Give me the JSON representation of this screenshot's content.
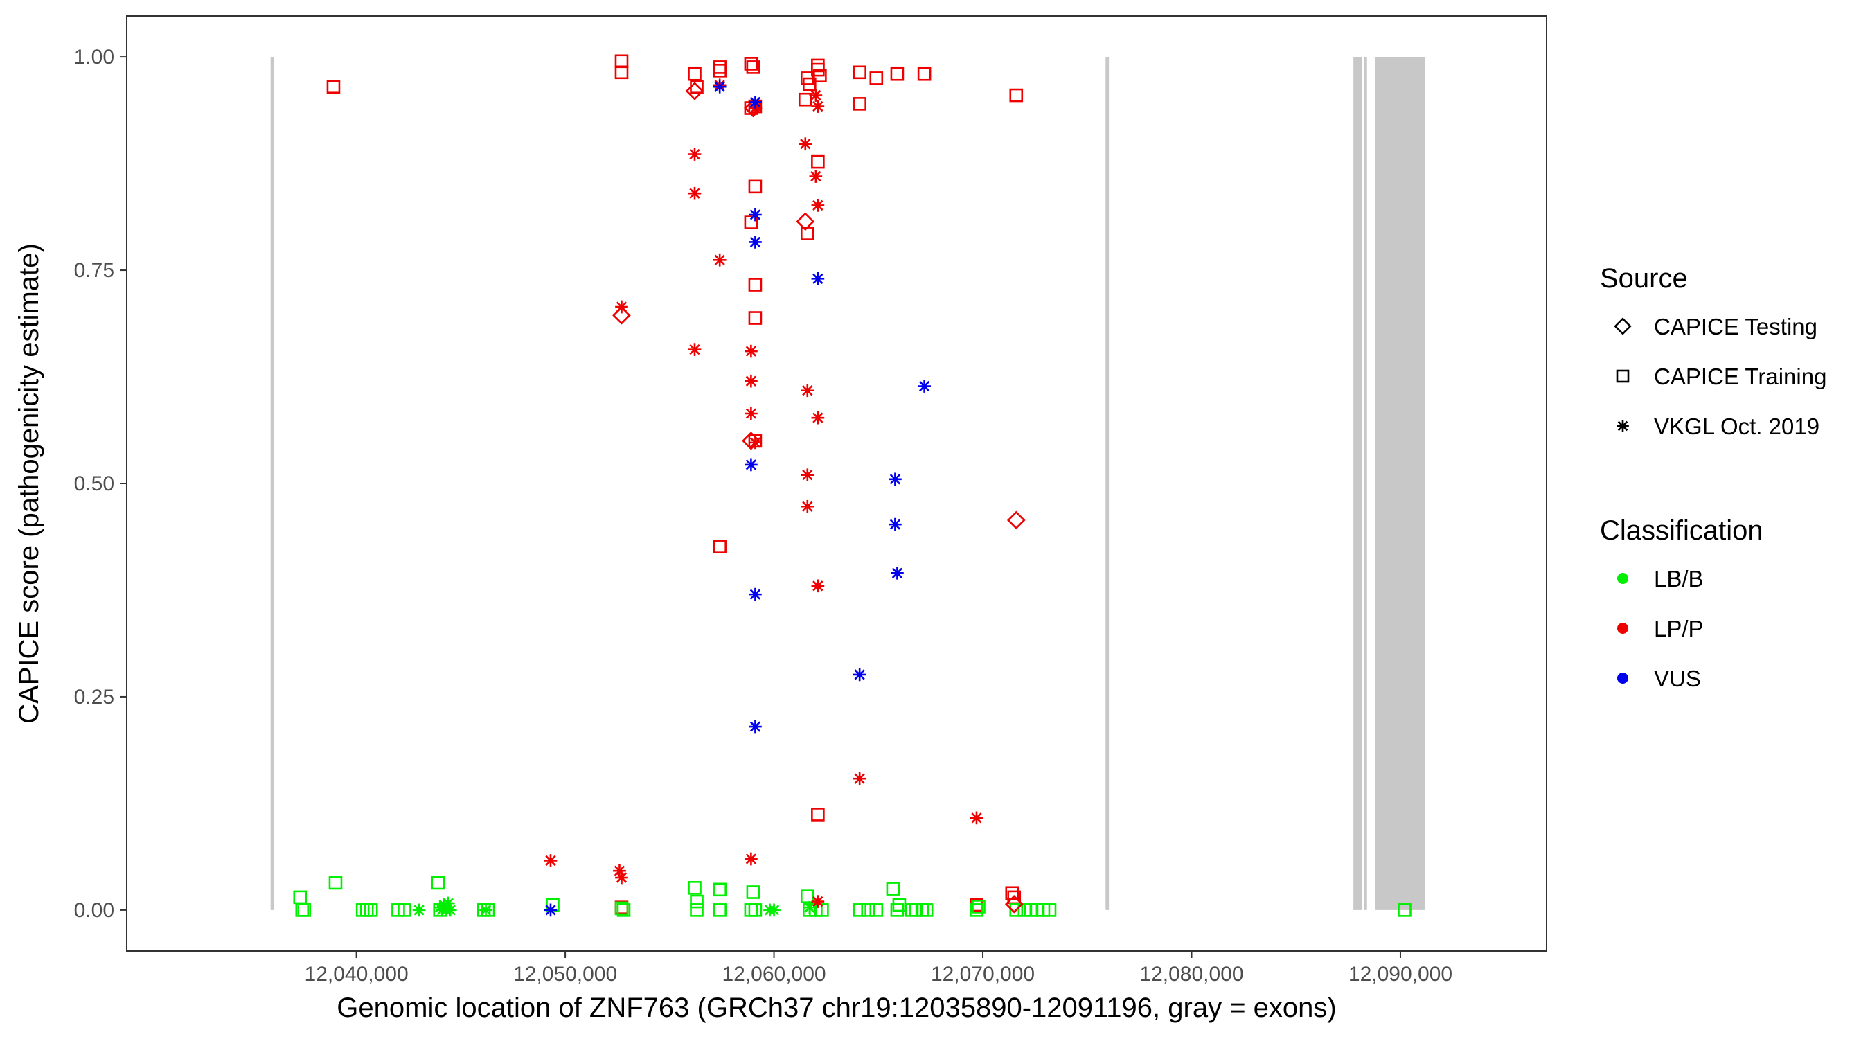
{
  "chart_data": {
    "type": "scatter",
    "xlabel": "Genomic location of ZNF763 (GRCh37 chr19:12035890-12091196, gray = exons)",
    "ylabel": "CAPICE score (pathogenicity estimate)",
    "xlim": [
      12029000,
      12097000
    ],
    "ylim": [
      -0.048,
      1.048
    ],
    "x_ticks": [
      12040000,
      12050000,
      12060000,
      12070000,
      12080000,
      12090000
    ],
    "x_tick_labels": [
      "12,040,000",
      "12,050,000",
      "12,060,000",
      "12,070,000",
      "12,080,000",
      "12,090,000"
    ],
    "y_ticks": [
      0.0,
      0.25,
      0.5,
      0.75,
      1.0
    ],
    "y_tick_labels": [
      "0.00",
      "0.25",
      "0.50",
      "0.75",
      "1.00"
    ],
    "grid": false,
    "exons": [
      {
        "start": 12035890,
        "end": 12036050
      },
      {
        "start": 12075880,
        "end": 12076040
      },
      {
        "start": 12087750,
        "end": 12088150
      },
      {
        "start": 12088250,
        "end": 12088400
      },
      {
        "start": 12088790,
        "end": 12091196
      }
    ],
    "legend": {
      "position": "right",
      "source_title": "Source",
      "source_entries": [
        {
          "label": "CAPICE Testing",
          "shape": "diamond"
        },
        {
          "label": "CAPICE Training",
          "shape": "square"
        },
        {
          "label": "VKGL Oct. 2019",
          "shape": "asterisk"
        }
      ],
      "class_title": "Classification",
      "class_entries": [
        {
          "label": "LB/B",
          "color": "#00ee00"
        },
        {
          "label": "LP/P",
          "color": "#ee0000"
        },
        {
          "label": "VUS",
          "color": "#0000ee"
        }
      ]
    },
    "colors": {
      "LB/B": "#00ee00",
      "LP/P": "#ee0000",
      "VUS": "#0000ee",
      "exon": "#c8c8c8"
    },
    "series": [
      {
        "name": "CAPICE Training",
        "shape": "square",
        "points": [
          [
            12038900,
            0.965,
            "LP/P"
          ],
          [
            12052700,
            0.995,
            "LP/P"
          ],
          [
            12052700,
            0.982,
            "LP/P"
          ],
          [
            12056200,
            0.98,
            "LP/P"
          ],
          [
            12056300,
            0.965,
            "LP/P"
          ],
          [
            12057400,
            0.988,
            "LP/P"
          ],
          [
            12057400,
            0.984,
            "LP/P"
          ],
          [
            12058900,
            0.992,
            "LP/P"
          ],
          [
            12059000,
            0.988,
            "LP/P"
          ],
          [
            12058900,
            0.94,
            "LP/P"
          ],
          [
            12059100,
            0.942,
            "LP/P"
          ],
          [
            12061600,
            0.975,
            "LP/P"
          ],
          [
            12061700,
            0.968,
            "LP/P"
          ],
          [
            12061500,
            0.95,
            "LP/P"
          ],
          [
            12062100,
            0.99,
            "LP/P"
          ],
          [
            12062100,
            0.985,
            "LP/P"
          ],
          [
            12062200,
            0.978,
            "LP/P"
          ],
          [
            12064100,
            0.982,
            "LP/P"
          ],
          [
            12064100,
            0.945,
            "LP/P"
          ],
          [
            12064900,
            0.975,
            "LP/P"
          ],
          [
            12065900,
            0.98,
            "LP/P"
          ],
          [
            12067200,
            0.98,
            "LP/P"
          ],
          [
            12071600,
            0.955,
            "LP/P"
          ],
          [
            12062100,
            0.877,
            "LP/P"
          ],
          [
            12059100,
            0.848,
            "LP/P"
          ],
          [
            12058900,
            0.806,
            "LP/P"
          ],
          [
            12061600,
            0.793,
            "LP/P"
          ],
          [
            12059100,
            0.733,
            "LP/P"
          ],
          [
            12059100,
            0.694,
            "LP/P"
          ],
          [
            12059100,
            0.55,
            "LP/P"
          ],
          [
            12057400,
            0.426,
            "LP/P"
          ],
          [
            12062100,
            0.112,
            "LP/P"
          ],
          [
            12069700,
            0.006,
            "LP/P"
          ],
          [
            12071400,
            0.02,
            "LP/P"
          ],
          [
            12071500,
            0.015,
            "LP/P"
          ],
          [
            12052700,
            0.003,
            "LP/P"
          ],
          [
            12037300,
            0.015,
            "LB/B"
          ],
          [
            12037400,
            0.0,
            "LB/B"
          ],
          [
            12037500,
            0.0,
            "LB/B"
          ],
          [
            12039000,
            0.032,
            "LB/B"
          ],
          [
            12040300,
            0.0,
            "LB/B"
          ],
          [
            12040500,
            0.0,
            "LB/B"
          ],
          [
            12040700,
            0.0,
            "LB/B"
          ],
          [
            12042000,
            0.0,
            "LB/B"
          ],
          [
            12042300,
            0.0,
            "LB/B"
          ],
          [
            12043900,
            0.032,
            "LB/B"
          ],
          [
            12044000,
            0.0,
            "LB/B"
          ],
          [
            12046100,
            0.0,
            "LB/B"
          ],
          [
            12046300,
            0.0,
            "LB/B"
          ],
          [
            12049400,
            0.006,
            "LB/B"
          ],
          [
            12052700,
            0.002,
            "LB/B"
          ],
          [
            12052800,
            0.0,
            "LB/B"
          ],
          [
            12056200,
            0.026,
            "LB/B"
          ],
          [
            12056300,
            0.01,
            "LB/B"
          ],
          [
            12056300,
            0.0,
            "LB/B"
          ],
          [
            12057400,
            0.024,
            "LB/B"
          ],
          [
            12057400,
            0.0,
            "LB/B"
          ],
          [
            12058900,
            0.0,
            "LB/B"
          ],
          [
            12059000,
            0.021,
            "LB/B"
          ],
          [
            12059100,
            0.0,
            "LB/B"
          ],
          [
            12061600,
            0.016,
            "LB/B"
          ],
          [
            12061700,
            0.0,
            "LB/B"
          ],
          [
            12062000,
            0.0,
            "LB/B"
          ],
          [
            12062300,
            0.0,
            "LB/B"
          ],
          [
            12064100,
            0.0,
            "LB/B"
          ],
          [
            12064500,
            0.0,
            "LB/B"
          ],
          [
            12064900,
            0.0,
            "LB/B"
          ],
          [
            12065700,
            0.025,
            "LB/B"
          ],
          [
            12065900,
            0.0,
            "LB/B"
          ],
          [
            12066000,
            0.006,
            "LB/B"
          ],
          [
            12066600,
            0.0,
            "LB/B"
          ],
          [
            12066800,
            0.0,
            "LB/B"
          ],
          [
            12067100,
            0.0,
            "LB/B"
          ],
          [
            12067300,
            0.0,
            "LB/B"
          ],
          [
            12069700,
            0.0,
            "LB/B"
          ],
          [
            12069800,
            0.004,
            "LB/B"
          ],
          [
            12071600,
            0.0,
            "LB/B"
          ],
          [
            12072000,
            0.0,
            "LB/B"
          ],
          [
            12072300,
            0.0,
            "LB/B"
          ],
          [
            12072600,
            0.0,
            "LB/B"
          ],
          [
            12072900,
            0.0,
            "LB/B"
          ],
          [
            12073200,
            0.0,
            "LB/B"
          ],
          [
            12090200,
            0.0,
            "LB/B"
          ]
        ]
      },
      {
        "name": "CAPICE Testing",
        "shape": "diamond",
        "points": [
          [
            12056200,
            0.96,
            "LP/P"
          ],
          [
            12061500,
            0.807,
            "LP/P"
          ],
          [
            12052700,
            0.697,
            "LP/P"
          ],
          [
            12058900,
            0.55,
            "LP/P"
          ],
          [
            12071600,
            0.457,
            "LP/P"
          ],
          [
            12059000,
            0.94,
            "LP/P"
          ],
          [
            12071500,
            0.007,
            "LP/P"
          ]
        ]
      },
      {
        "name": "VKGL Oct. 2019",
        "shape": "asterisk",
        "points": [
          [
            12057400,
            0.967,
            "LP/P"
          ],
          [
            12059100,
            0.94,
            "LP/P"
          ],
          [
            12062000,
            0.955,
            "LP/P"
          ],
          [
            12062100,
            0.942,
            "LP/P"
          ],
          [
            12061500,
            0.898,
            "LP/P"
          ],
          [
            12056200,
            0.886,
            "LP/P"
          ],
          [
            12062000,
            0.86,
            "LP/P"
          ],
          [
            12056200,
            0.84,
            "LP/P"
          ],
          [
            12062100,
            0.826,
            "LP/P"
          ],
          [
            12057400,
            0.762,
            "LP/P"
          ],
          [
            12052700,
            0.707,
            "LP/P"
          ],
          [
            12056200,
            0.657,
            "LP/P"
          ],
          [
            12058900,
            0.655,
            "LP/P"
          ],
          [
            12058900,
            0.62,
            "LP/P"
          ],
          [
            12061600,
            0.609,
            "LP/P"
          ],
          [
            12058900,
            0.582,
            "LP/P"
          ],
          [
            12062100,
            0.577,
            "LP/P"
          ],
          [
            12059100,
            0.548,
            "LP/P"
          ],
          [
            12061600,
            0.51,
            "LP/P"
          ],
          [
            12061600,
            0.473,
            "LP/P"
          ],
          [
            12062100,
            0.38,
            "LP/P"
          ],
          [
            12064100,
            0.154,
            "LP/P"
          ],
          [
            12069700,
            0.108,
            "LP/P"
          ],
          [
            12049300,
            0.058,
            "LP/P"
          ],
          [
            12058900,
            0.06,
            "LP/P"
          ],
          [
            12052600,
            0.046,
            "LP/P"
          ],
          [
            12052700,
            0.038,
            "LP/P"
          ],
          [
            12062100,
            0.01,
            "LP/P"
          ],
          [
            12057400,
            0.965,
            "VUS"
          ],
          [
            12059100,
            0.947,
            "VUS"
          ],
          [
            12059100,
            0.815,
            "VUS"
          ],
          [
            12059100,
            0.783,
            "VUS"
          ],
          [
            12062100,
            0.74,
            "VUS"
          ],
          [
            12067200,
            0.614,
            "VUS"
          ],
          [
            12058900,
            0.522,
            "VUS"
          ],
          [
            12065800,
            0.505,
            "VUS"
          ],
          [
            12065800,
            0.452,
            "VUS"
          ],
          [
            12065900,
            0.395,
            "VUS"
          ],
          [
            12059100,
            0.37,
            "VUS"
          ],
          [
            12064100,
            0.276,
            "VUS"
          ],
          [
            12059100,
            0.215,
            "VUS"
          ],
          [
            12049300,
            0.0,
            "VUS"
          ],
          [
            12043000,
            0.0,
            "LB/B"
          ],
          [
            12044000,
            0.003,
            "LB/B"
          ],
          [
            12044100,
            0.0,
            "LB/B"
          ],
          [
            12044200,
            0.006,
            "LB/B"
          ],
          [
            12044300,
            0.0,
            "LB/B"
          ],
          [
            12044400,
            0.008,
            "LB/B"
          ],
          [
            12044500,
            0.0,
            "LB/B"
          ],
          [
            12046200,
            0.0,
            "LB/B"
          ],
          [
            12059800,
            0.0,
            "LB/B"
          ],
          [
            12060000,
            0.0,
            "LB/B"
          ],
          [
            12061700,
            0.003,
            "LB/B"
          ]
        ]
      }
    ]
  }
}
